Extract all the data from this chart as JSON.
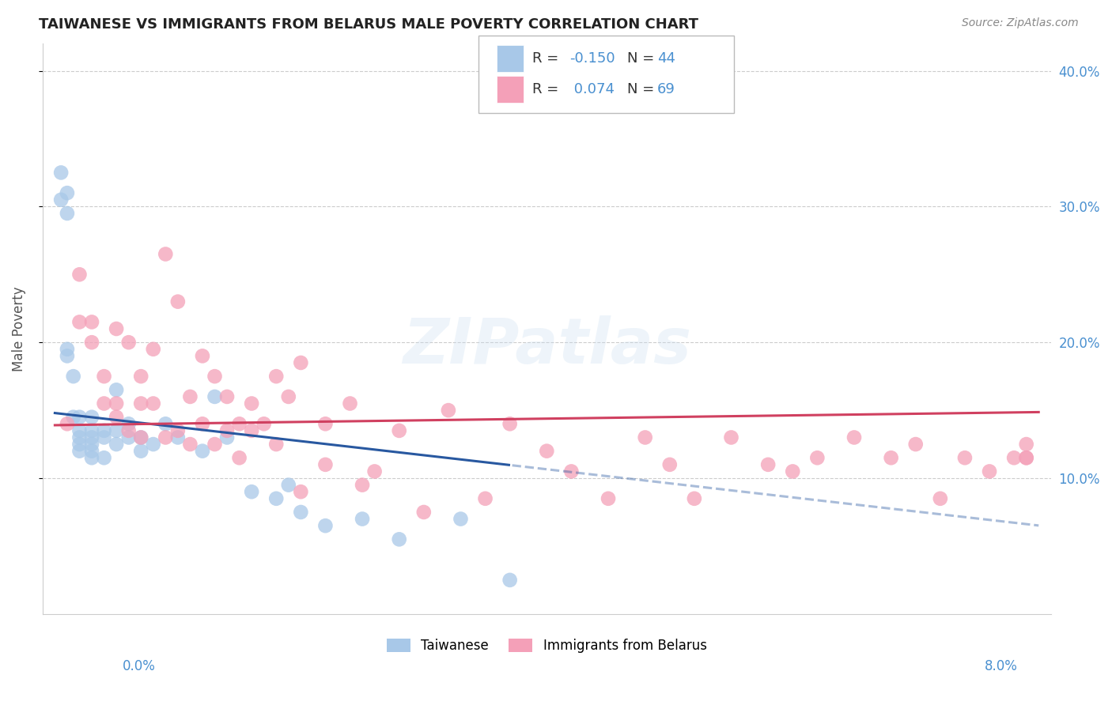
{
  "title": "TAIWANESE VS IMMIGRANTS FROM BELARUS MALE POVERTY CORRELATION CHART",
  "source": "Source: ZipAtlas.com",
  "ylabel": "Male Poverty",
  "x_range": [
    0.0,
    0.08
  ],
  "y_range": [
    0.0,
    0.42
  ],
  "y_ticks": [
    0.1,
    0.2,
    0.3,
    0.4
  ],
  "taiwanese_R": -0.15,
  "taiwanese_N": 44,
  "belarus_R": 0.074,
  "belarus_N": 69,
  "taiwanese_color": "#a8c8e8",
  "belarus_color": "#f4a0b8",
  "taiwanese_line_color": "#2858a0",
  "belarus_line_color": "#d04060",
  "legend_label_1": "Taiwanese",
  "legend_label_2": "Immigrants from Belarus",
  "taiwanese_x": [
    0.0005,
    0.0005,
    0.001,
    0.001,
    0.001,
    0.001,
    0.0015,
    0.0015,
    0.002,
    0.002,
    0.002,
    0.002,
    0.002,
    0.003,
    0.003,
    0.003,
    0.003,
    0.003,
    0.003,
    0.004,
    0.004,
    0.004,
    0.005,
    0.005,
    0.005,
    0.006,
    0.006,
    0.007,
    0.007,
    0.008,
    0.009,
    0.01,
    0.012,
    0.013,
    0.014,
    0.016,
    0.018,
    0.019,
    0.02,
    0.022,
    0.025,
    0.028,
    0.033,
    0.037
  ],
  "taiwanese_y": [
    0.325,
    0.305,
    0.31,
    0.295,
    0.19,
    0.195,
    0.175,
    0.145,
    0.145,
    0.135,
    0.13,
    0.125,
    0.12,
    0.145,
    0.135,
    0.13,
    0.125,
    0.12,
    0.115,
    0.135,
    0.13,
    0.115,
    0.165,
    0.135,
    0.125,
    0.14,
    0.13,
    0.13,
    0.12,
    0.125,
    0.14,
    0.13,
    0.12,
    0.16,
    0.13,
    0.09,
    0.085,
    0.095,
    0.075,
    0.065,
    0.07,
    0.055,
    0.07,
    0.025
  ],
  "belarus_x": [
    0.001,
    0.002,
    0.002,
    0.003,
    0.003,
    0.004,
    0.004,
    0.005,
    0.005,
    0.005,
    0.006,
    0.006,
    0.007,
    0.007,
    0.007,
    0.008,
    0.008,
    0.009,
    0.009,
    0.01,
    0.01,
    0.011,
    0.011,
    0.012,
    0.012,
    0.013,
    0.013,
    0.014,
    0.014,
    0.015,
    0.015,
    0.016,
    0.016,
    0.017,
    0.018,
    0.018,
    0.019,
    0.02,
    0.02,
    0.022,
    0.022,
    0.024,
    0.025,
    0.026,
    0.028,
    0.03,
    0.032,
    0.035,
    0.037,
    0.04,
    0.042,
    0.045,
    0.048,
    0.05,
    0.052,
    0.055,
    0.058,
    0.06,
    0.062,
    0.065,
    0.068,
    0.07,
    0.072,
    0.074,
    0.076,
    0.078,
    0.079,
    0.079,
    0.079
  ],
  "belarus_y": [
    0.14,
    0.25,
    0.215,
    0.215,
    0.2,
    0.175,
    0.155,
    0.21,
    0.155,
    0.145,
    0.135,
    0.2,
    0.175,
    0.155,
    0.13,
    0.155,
    0.195,
    0.265,
    0.13,
    0.23,
    0.135,
    0.16,
    0.125,
    0.19,
    0.14,
    0.175,
    0.125,
    0.16,
    0.135,
    0.14,
    0.115,
    0.155,
    0.135,
    0.14,
    0.175,
    0.125,
    0.16,
    0.185,
    0.09,
    0.14,
    0.11,
    0.155,
    0.095,
    0.105,
    0.135,
    0.075,
    0.15,
    0.085,
    0.14,
    0.12,
    0.105,
    0.085,
    0.13,
    0.11,
    0.085,
    0.13,
    0.11,
    0.105,
    0.115,
    0.13,
    0.115,
    0.125,
    0.085,
    0.115,
    0.105,
    0.115,
    0.125,
    0.115,
    0.115
  ]
}
